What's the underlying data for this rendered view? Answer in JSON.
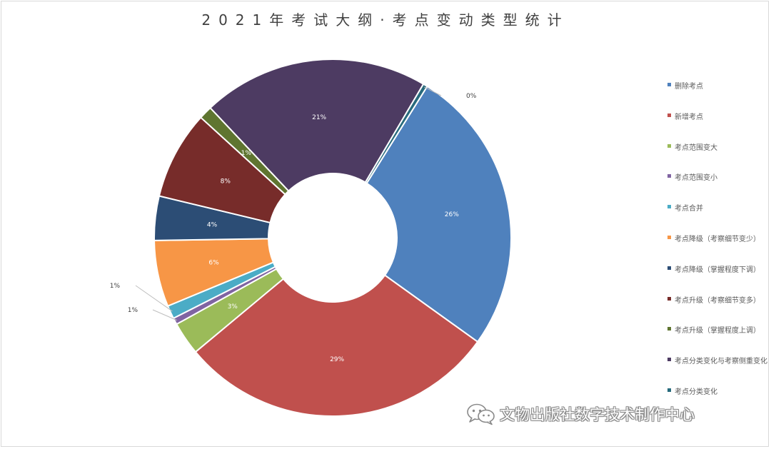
{
  "chart_data": {
    "type": "pie",
    "donut": true,
    "title": "2021年考试大纲·考点变动类型统计",
    "legend_position": "right",
    "series": [
      {
        "name": "删除考点",
        "value": 26,
        "label": "26%",
        "color": "#4F81BD",
        "label_style": "inside"
      },
      {
        "name": "新增考点",
        "value": 29,
        "label": "29%",
        "color": "#C0504D",
        "label_style": "inside"
      },
      {
        "name": "考点范围变大",
        "value": 3,
        "label": "3%",
        "color": "#9BBB59",
        "label_style": "inside"
      },
      {
        "name": "考点范围变小",
        "value": 0.6,
        "label": "1%",
        "color": "#8064A2",
        "label_style": "outside"
      },
      {
        "name": "考点合并",
        "value": 1.2,
        "label": "1%",
        "color": "#4BACC6",
        "label_style": "outside"
      },
      {
        "name": "考点降级（考察细节变少）",
        "value": 6,
        "label": "6%",
        "color": "#F79646",
        "label_style": "inside"
      },
      {
        "name": "考点降级（掌握程度下调）",
        "value": 4,
        "label": "4%",
        "color": "#2C4D75",
        "label_style": "inside"
      },
      {
        "name": "考点升级（考察细节变多）",
        "value": 8,
        "label": "8%",
        "color": "#772C2A",
        "label_style": "inside"
      },
      {
        "name": "考点升级（掌握程度上调）",
        "value": 1.2,
        "label": "1%",
        "color": "#5F7530",
        "label_style": "inside"
      },
      {
        "name": "考点分类变化与考察侧重变化",
        "value": 20.5,
        "label": "21%",
        "color": "#4D3B62",
        "label_style": "inside"
      },
      {
        "name": "考点分类变化",
        "value": 0.4,
        "label": "0%",
        "color": "#276A7C",
        "label_style": "outside"
      }
    ]
  },
  "watermark": {
    "text": "文物出版社数字技术制作中心",
    "icon": "wechat-icon"
  }
}
